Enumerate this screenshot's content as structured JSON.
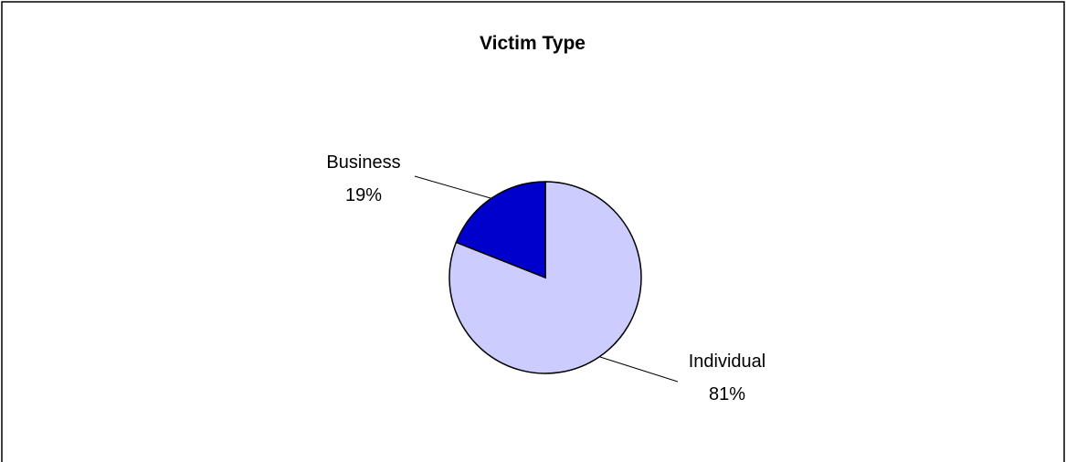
{
  "chart_data": {
    "type": "pie",
    "title": "Victim Type",
    "slices": [
      {
        "label": "Individual",
        "value": 81,
        "value_label": "81%",
        "color": "#ccccff"
      },
      {
        "label": "Business",
        "value": 19,
        "value_label": "19%",
        "color": "#0000cc"
      }
    ],
    "legend": "none",
    "colors": {
      "border": "#000000",
      "background": "#ffffff"
    }
  }
}
